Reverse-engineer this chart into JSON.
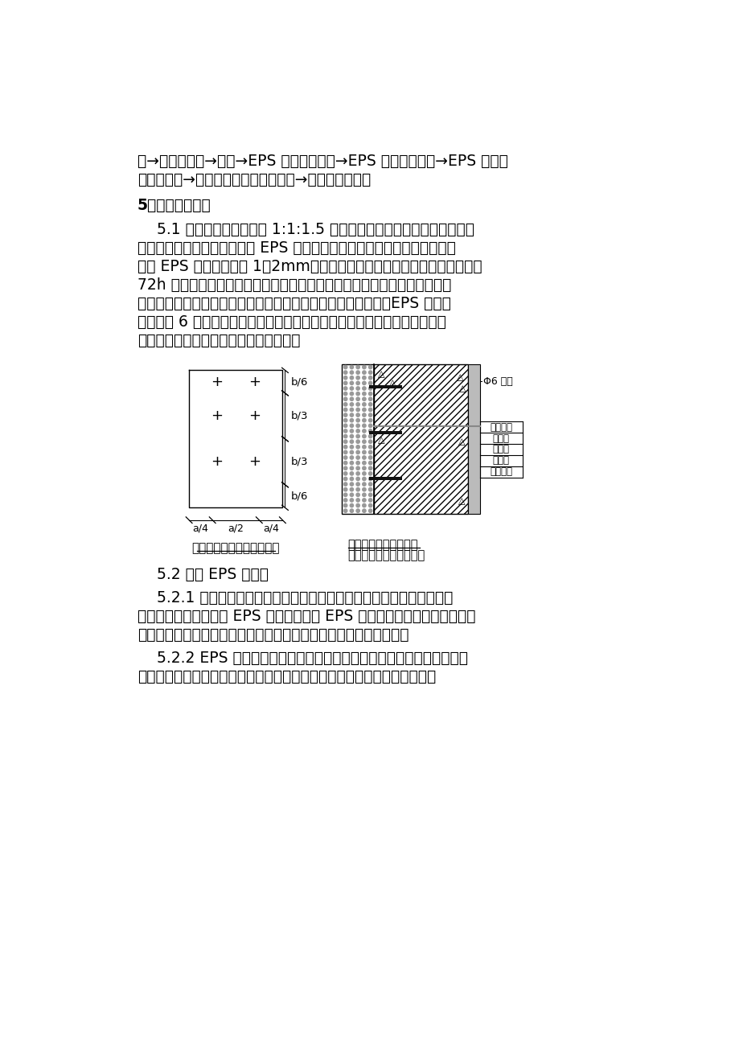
{
  "background_color": "#ffffff",
  "line1": "板→浇注混凝土→拆模→EPS 聚苯板面清理→EPS 聚苯板面修整→EPS 聚苯板",
  "line2": "面砂浆找平→玻纤网和聚合物抗裂砂浆→贴砖或面层涂料",
  "heading": "5、主要施工方法",
  "para1_lines": [
    "    5.1 准备工作：首先，用 1:1:1.5 的界面乳液：水泥：中砂的混合浆料",
    "（界面剂），通过气压泵，将 EPS 聚苯板板面双面喷涂，注意喷涂要均匀，",
    "不露 EPS 板面，厚度在 1～2mm为宜，并且界面剂处理后有强度，并浸水后",
    "72h 无脱落、粉化、起皮现象，验收质量合格。另外，在外墙钢筋绑扎完成",
    "后，在外墙钢筋外侧绑扎塑料保护层垫块，每平方米（或每块）EPS 聚苯板",
    "内不少于 6 块，用以保证保护层厚度并确保保护层厚度均匀一致，钢筋绑扎",
    "检查验收合格后，方可进行保温板安装。"
  ],
  "section52": "    5.2 安装 EPS 聚苯板",
  "para521_lines": [
    "    5.2.1 在地面上弹出设计所要求的墙体宽度，以确定外墙厚度尺寸。然",
    "后在墙体钢筋外侧安装 EPS 聚苯板，要求 EPS 聚苯板面紧贴标准塑料保护层",
    "垫块，带网式保温板的钢丝网面朝外，无网式保温板燕尾槽面朝里。"
  ],
  "para522_lines": [
    "    5.2.2 EPS 聚苯板的安装应从阳角部位开始，水平向阴角方向铺放。下",
    "层板与上层板应交错搭接，犹如砌砖格式成丁字形。混凝土墙柱靠窗户阳角"
  ],
  "caption_left": "锚固钢筋及保护层垫块位置",
  "caption_right1": "有网保温体系基本做法",
  "caption_right2": "《外墙贴砖的保温做法》",
  "right_labels": [
    "外墙面砖",
    "抹灰层",
    "钢丝网",
    "保温层",
    "混凝土墙"
  ],
  "phi6_label": "Φ6 钢筋"
}
